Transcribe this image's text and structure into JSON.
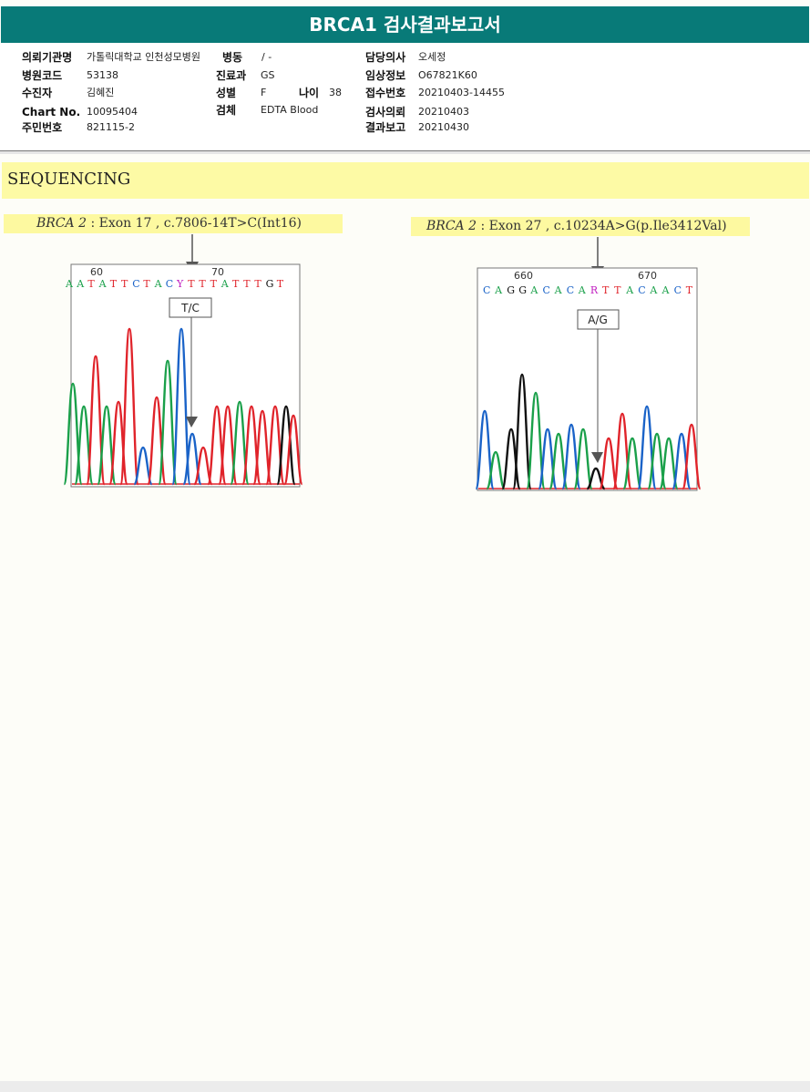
{
  "report": {
    "title": "BRCA1 검사결과보고서"
  },
  "patient_info": {
    "col1": [
      {
        "label": "의뢰기관명",
        "value": "가톨릭대학교 인천성모병원"
      },
      {
        "label": "병원코드",
        "value": "53138"
      },
      {
        "label": "수진자",
        "value": "김혜진"
      },
      {
        "label": "Chart No.",
        "value": "10095404"
      },
      {
        "label": "주민번호",
        "value": "821115-2"
      }
    ],
    "col2": [
      {
        "label": "병동",
        "value": "/ -"
      },
      {
        "label": "진료과",
        "value": "GS"
      },
      {
        "label": "성별",
        "value": "F"
      },
      {
        "label": "검체",
        "value": "EDTA Blood"
      }
    ],
    "age": {
      "label": "나이",
      "value": "38"
    },
    "col3": [
      {
        "label": "담당의사",
        "value": "오세정"
      },
      {
        "label": "임상정보",
        "value": "O67821K60"
      },
      {
        "label": "접수번호",
        "value": "20210403-14455"
      },
      {
        "label": "검사의뢰",
        "value": "20210403"
      },
      {
        "label": "결과보고",
        "value": "20210430"
      }
    ]
  },
  "section": {
    "title": "SEQUENCING"
  },
  "variants": [
    {
      "gene": "BRCA 2",
      "description": ": Exon 17 , c.7806-14T>C(Int16)",
      "position_labels": [
        "60",
        "70"
      ],
      "sequence": [
        "A",
        "A",
        "T",
        "A",
        "T",
        "T",
        "C",
        "T",
        "A",
        "C",
        "Y",
        "T",
        "T",
        "T",
        "A",
        "T",
        "T",
        "T",
        "G",
        "T"
      ],
      "call": "T/C"
    },
    {
      "gene": "BRCA 2",
      "description": ": Exon 27 , c.10234A>G(p.Ile3412Val)",
      "position_labels": [
        "660",
        "670"
      ],
      "sequence": [
        "C",
        "A",
        "G",
        "G",
        "A",
        "C",
        "A",
        "C",
        "A",
        "R",
        "T",
        "T",
        "A",
        "C",
        "A",
        "A",
        "C",
        "T"
      ],
      "call": "A/G"
    }
  ],
  "colors": {
    "header": "#087a78",
    "highlight": "#fdf9a0",
    "base_A": "#1aa04a",
    "base_C": "#1a63c8",
    "base_G": "#111111",
    "base_T": "#e0232a",
    "ambiguous": "#c01ec0"
  }
}
